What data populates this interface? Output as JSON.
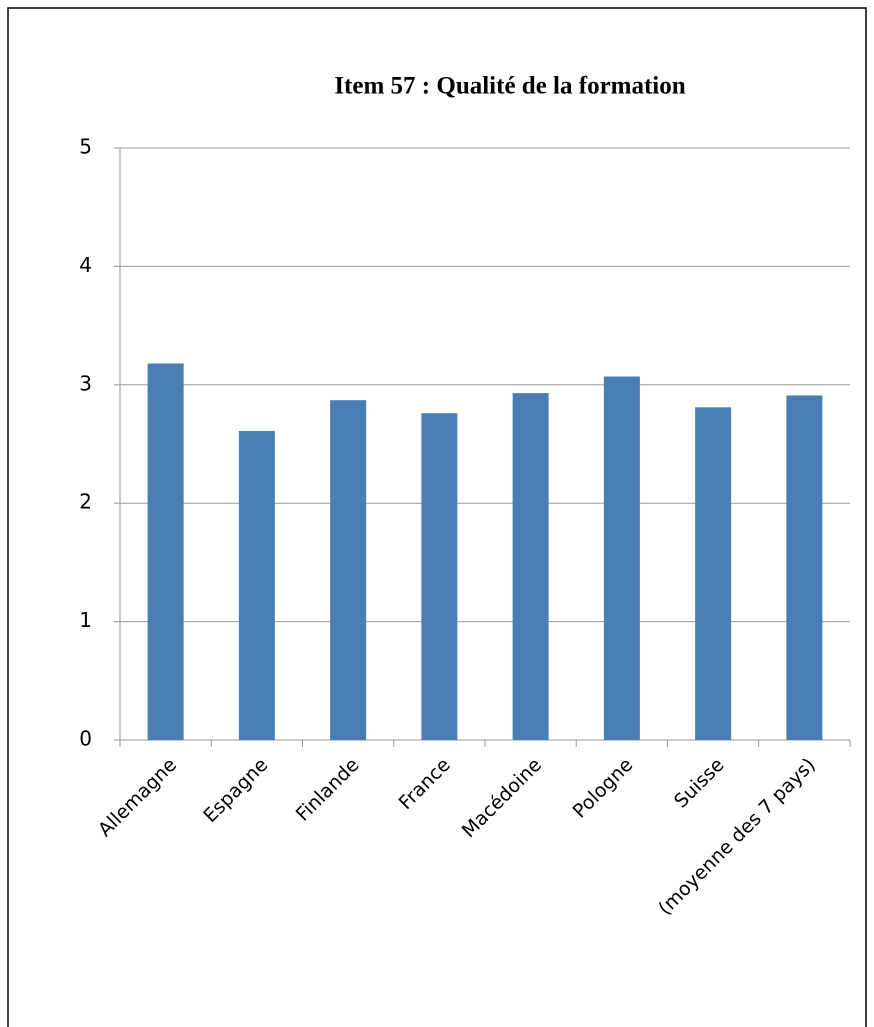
{
  "chart_data": {
    "type": "bar",
    "title": "Item 57 : Qualité de la formation",
    "categories": [
      "Allemagne",
      "Espagne",
      "Finlande",
      "France",
      "Macédoine",
      "Pologne",
      "Suisse",
      "(moyenne des 7 pays)"
    ],
    "values": [
      3.18,
      2.61,
      2.87,
      2.76,
      2.93,
      3.07,
      2.81,
      2.91
    ],
    "color": "#4a7db4",
    "ylim": [
      0,
      5
    ],
    "yticks": [
      0,
      1,
      2,
      3,
      4,
      5
    ],
    "grid": true
  }
}
